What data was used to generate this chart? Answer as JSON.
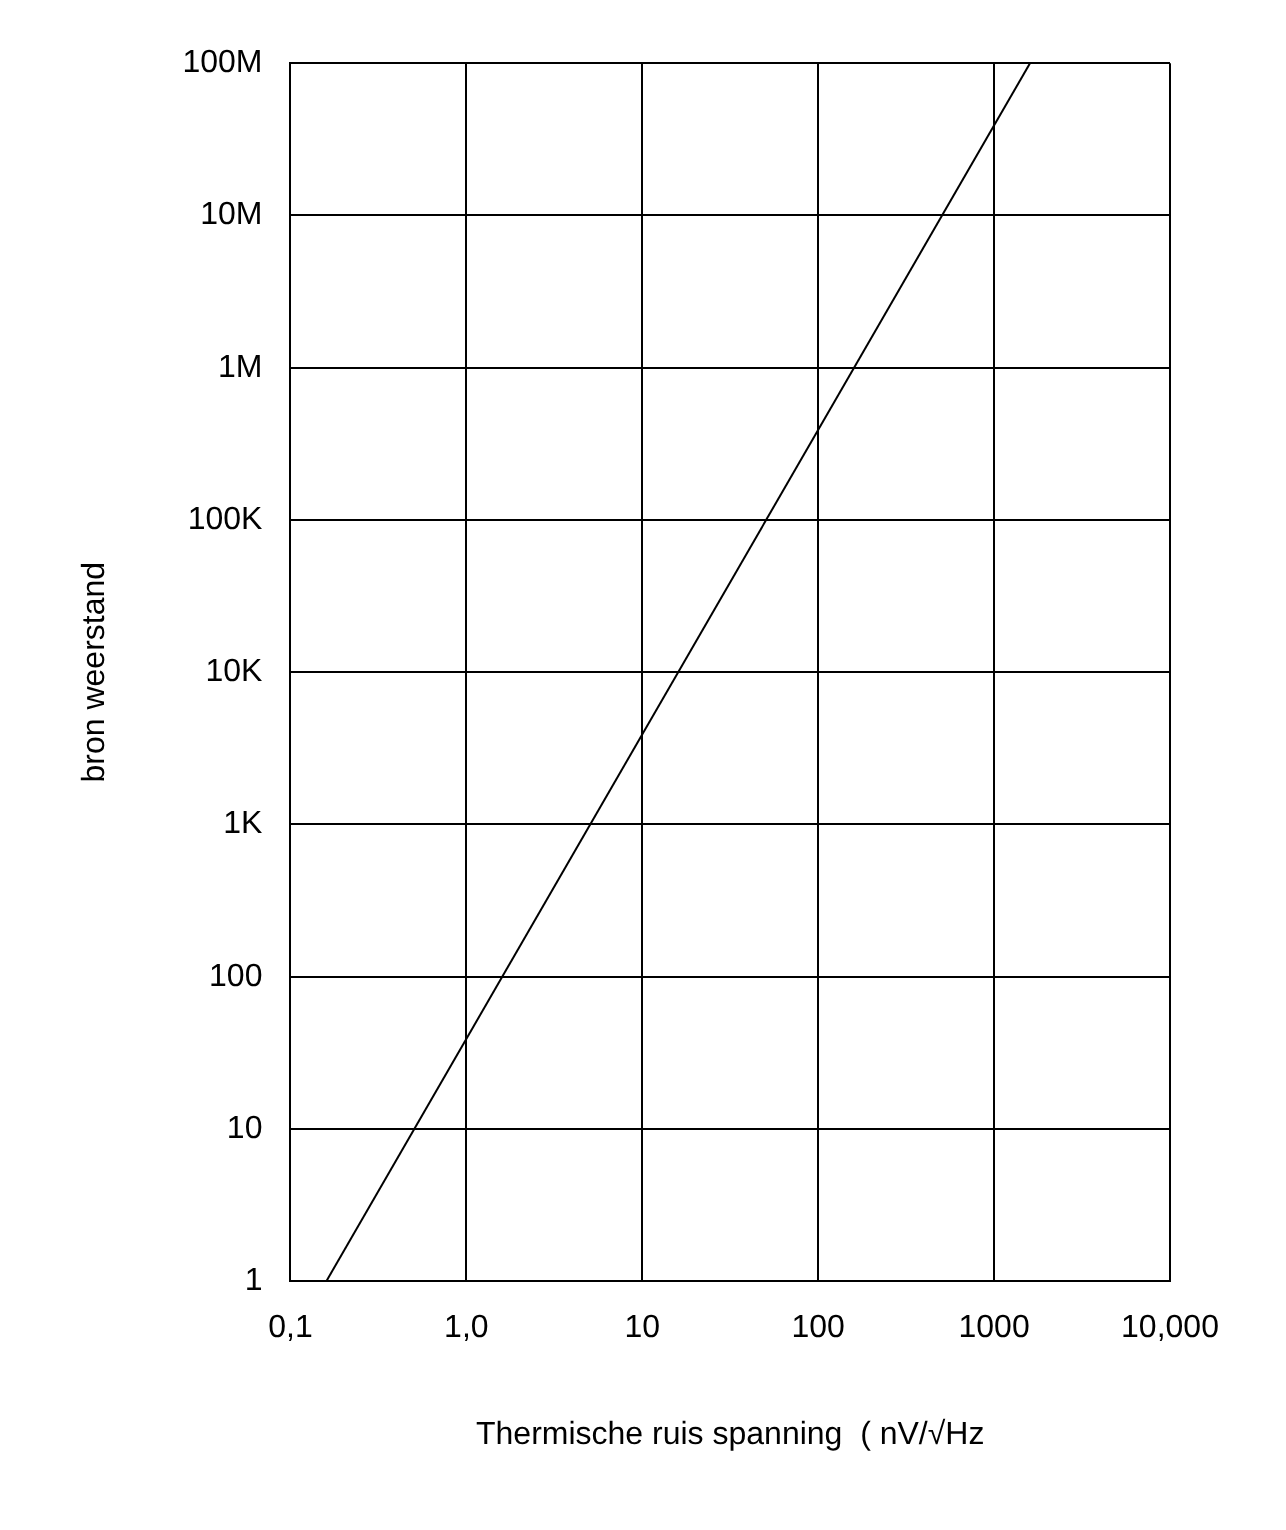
{
  "chart_data": {
    "type": "line",
    "xlabel": "Thermische ruis spanning  ( nV/√Hz",
    "ylabel": "bron weerstand",
    "series": [
      {
        "color": "#000000",
        "x": [
          0.16,
          1600
        ],
        "values": [
          1,
          100000000
        ]
      }
    ],
    "log": "xy",
    "xlim": [
      0.1,
      10000
    ],
    "xticks": [
      {
        "value": 0.1,
        "label": "0,1"
      },
      {
        "value": 1,
        "label": "1,0"
      },
      10,
      100,
      1000,
      {
        "value": 10000,
        "label": "10,000"
      }
    ],
    "ylim": [
      1,
      100000000
    ],
    "yticks": [
      1,
      10,
      100,
      {
        "value": 1000,
        "label": "1K"
      },
      {
        "value": 10000,
        "label": "10K"
      },
      {
        "value": 100000,
        "label": "100K"
      },
      {
        "value": 1000000,
        "label": "1M"
      },
      {
        "value": 10000000,
        "label": "10M"
      },
      {
        "value": 100000000,
        "label": "100M"
      }
    ],
    "grid": true,
    "marker": "none",
    "line_style": "solid"
  }
}
